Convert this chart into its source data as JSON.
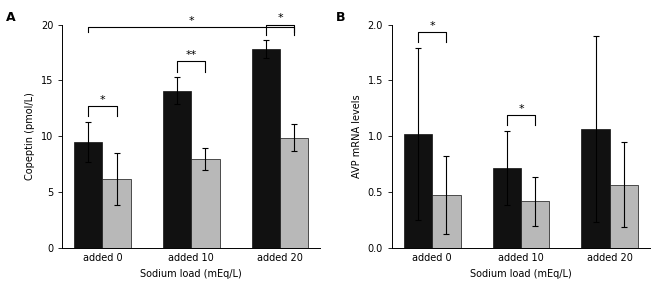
{
  "panel_A": {
    "title": "A",
    "ylabel": "Copeptin (pmol/L)",
    "xlabel": "Sodium load (mEq/L)",
    "categories": [
      "added 0",
      "added 10",
      "added 20"
    ],
    "black_values": [
      9.5,
      14.1,
      17.8
    ],
    "gray_values": [
      6.2,
      8.0,
      9.9
    ],
    "black_errors": [
      1.8,
      1.2,
      0.8
    ],
    "gray_errors": [
      2.3,
      1.0,
      1.2
    ],
    "ylim": [
      0,
      20
    ],
    "yticks": [
      0,
      5,
      10,
      15,
      20
    ],
    "sig_pairs": [
      {
        "xi": 0,
        "label": "*"
      },
      {
        "xi": 1,
        "label": "**"
      },
      {
        "xi": 2,
        "label": "*"
      }
    ],
    "sig_overall": true,
    "sig_overall_label": "*"
  },
  "panel_B": {
    "title": "B",
    "ylabel": "AVP mRNA levels",
    "xlabel": "Sodium load (mEq/L)",
    "categories": [
      "added 0",
      "added 10",
      "added 20"
    ],
    "black_values": [
      1.02,
      0.72,
      1.07
    ],
    "gray_values": [
      0.48,
      0.42,
      0.57
    ],
    "black_errors": [
      0.77,
      0.33,
      0.83
    ],
    "gray_errors": [
      0.35,
      0.22,
      0.38
    ],
    "ylim": [
      0,
      2.0
    ],
    "yticks": [
      0.0,
      0.5,
      1.0,
      1.5,
      2.0
    ],
    "sig_pairs": [
      {
        "xi": 0,
        "label": "*"
      },
      {
        "xi": 1,
        "label": "*"
      }
    ],
    "sig_overall": false
  },
  "bar_width": 0.32,
  "black_color": "#111111",
  "gray_color": "#b8b8b8",
  "background_color": "#ffffff",
  "fontsize_label": 7,
  "fontsize_tick": 7,
  "fontsize_title": 9,
  "fontsize_sig": 8,
  "capsize": 2,
  "elinewidth": 0.8,
  "bar_edgecolor": "#111111"
}
